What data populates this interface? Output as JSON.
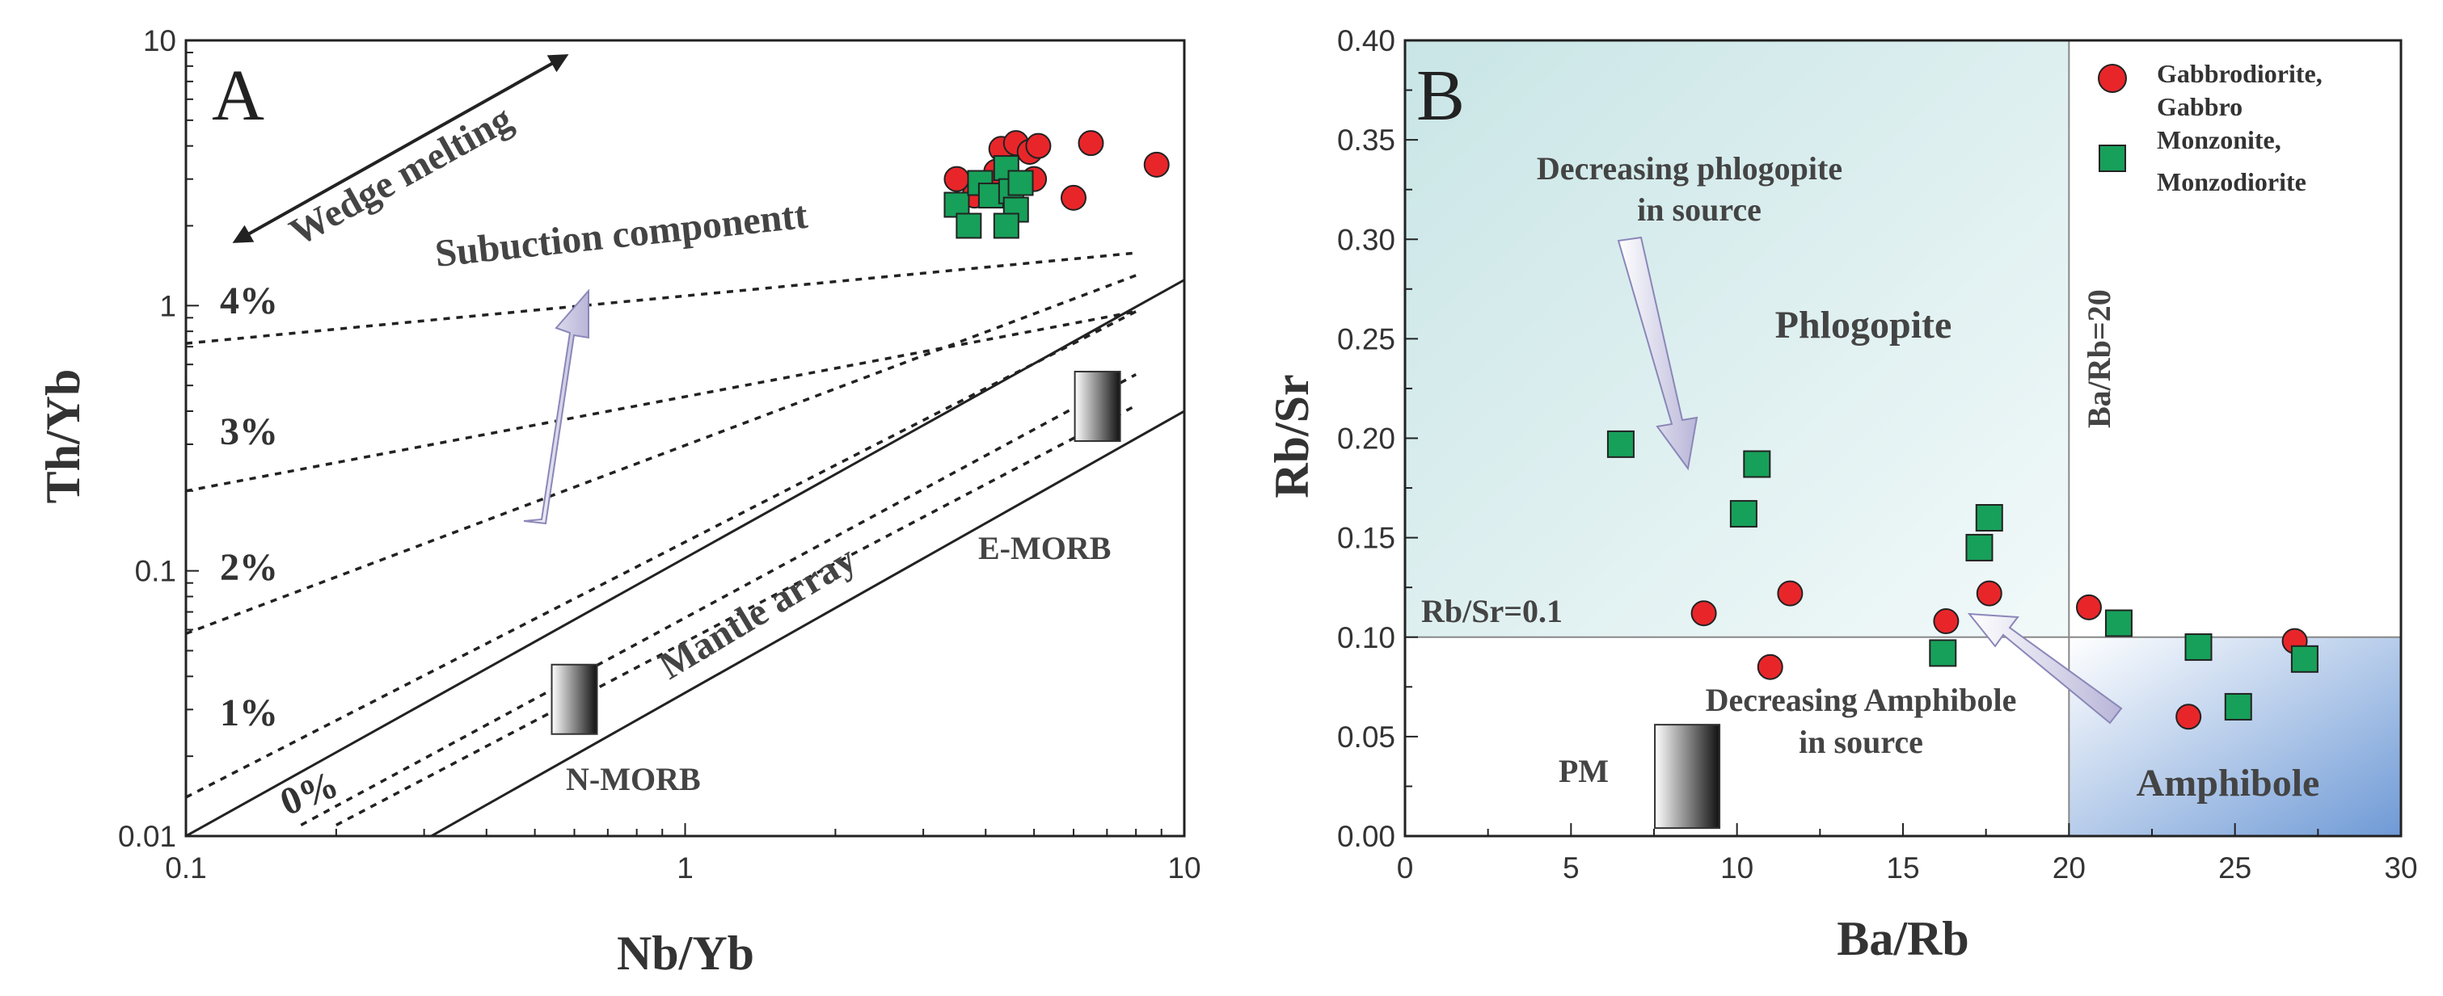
{
  "figure_colors": {
    "gabbro": "#e8262a",
    "monzonite": "#17a05a",
    "frame": "#222222",
    "phlogopite_fill_start": "#cfe7e7",
    "amphibole_fill_end": "#6f9ad6"
  },
  "chart_data": [
    {
      "panel": "A",
      "type": "scatter",
      "xscale": "log",
      "yscale": "log",
      "xlim": [
        0.1,
        10
      ],
      "ylim": [
        0.01,
        10
      ],
      "xticks": [
        0.1,
        1,
        10
      ],
      "yticks": [
        0.01,
        0.1,
        1,
        10
      ],
      "xtick_labels": [
        "0.1",
        "1",
        "10"
      ],
      "ytick_labels": [
        "0.01",
        "0.1",
        "1",
        "10"
      ],
      "xlabel": "Nb/Yb",
      "ylabel": "Th/Yb",
      "mantle_array": {
        "lower": [
          [
            0.31,
            0.01
          ],
          [
            10,
            0.4
          ]
        ],
        "upper": [
          [
            0.1,
            0.01
          ],
          [
            10,
            1.25
          ]
        ]
      },
      "melting_curves": [
        {
          "label": "0%",
          "points": [
            [
              0.2,
              0.011
            ],
            [
              8,
              0.42
            ]
          ]
        },
        {
          "label": "0%",
          "points": [
            [
              0.17,
              0.011
            ],
            [
              8,
              0.55
            ]
          ]
        },
        {
          "label": "1%",
          "points": [
            [
              0.1,
              0.014
            ],
            [
              8,
              0.95
            ]
          ]
        },
        {
          "label": "2%",
          "points": [
            [
              0.1,
              0.058
            ],
            [
              8,
              1.3
            ]
          ]
        },
        {
          "label": "3%",
          "points": [
            [
              0.1,
              0.2
            ],
            [
              8,
              0.95
            ]
          ]
        },
        {
          "label": "4%",
          "points": [
            [
              0.1,
              0.72
            ],
            [
              8,
              1.58
            ]
          ]
        }
      ],
      "reference_points": [
        {
          "label": "N-MORB",
          "x": 0.6,
          "y": 0.033
        },
        {
          "label": "E-MORB",
          "x": 6.7,
          "y": 0.42
        }
      ],
      "annotations": {
        "wedge_melting": "Wedge melting",
        "subduction": "Subuction componentt",
        "mantle_array": "Mantle array",
        "percent_labels": [
          "4%",
          "3%",
          "2%",
          "1%",
          "0%"
        ]
      },
      "series": [
        {
          "name": "Gabbrodiorite, Gabbro",
          "marker": "circle",
          "color": "#e8262a",
          "points": [
            [
              4.3,
              3.9
            ],
            [
              4.6,
              4.1
            ],
            [
              4.9,
              3.8
            ],
            [
              5.1,
              4.0
            ],
            [
              4.2,
              3.2
            ],
            [
              3.5,
              3.0
            ],
            [
              5.0,
              3.0
            ],
            [
              3.8,
              2.6
            ],
            [
              6.0,
              2.55
            ],
            [
              6.5,
              4.1
            ],
            [
              8.8,
              3.4
            ]
          ]
        },
        {
          "name": "Monzonite, Monzodiorite",
          "marker": "square",
          "color": "#17a05a",
          "points": [
            [
              3.5,
              2.4
            ],
            [
              3.7,
              2.0
            ],
            [
              3.9,
              2.9
            ],
            [
              4.1,
              2.6
            ],
            [
              4.4,
              3.3
            ],
            [
              4.5,
              2.7
            ],
            [
              4.6,
              2.3
            ],
            [
              4.4,
              2.0
            ],
            [
              4.7,
              2.9
            ]
          ]
        }
      ]
    },
    {
      "panel": "B",
      "type": "scatter",
      "xlim": [
        0,
        30
      ],
      "ylim": [
        0,
        0.4
      ],
      "xticks": [
        0,
        5,
        10,
        15,
        20,
        25,
        30
      ],
      "yticks": [
        0.0,
        0.05,
        0.1,
        0.15,
        0.2,
        0.25,
        0.3,
        0.35,
        0.4
      ],
      "xtick_labels": [
        "0",
        "5",
        "10",
        "15",
        "20",
        "25",
        "30"
      ],
      "ytick_labels": [
        "0.00",
        "0.05",
        "0.10",
        "0.15",
        "0.20",
        "0.25",
        "0.30",
        "0.35",
        "0.40"
      ],
      "xlabel": "Ba/Rb",
      "ylabel": "Rb/Sr",
      "reference_lines": {
        "rb_sr": 0.1,
        "ba_rb": 20
      },
      "reference_points": [
        {
          "label": "PM",
          "x": 8.5,
          "y": 0.03
        }
      ],
      "fields": {
        "phlogopite": "Phlogopite",
        "amphibole": "Amphibole"
      },
      "annotations": {
        "rb_sr_line": "Rb/Sr=0.1",
        "ba_rb_line": "Ba/Rb=20",
        "phlogopite_arrow": [
          "Decreasing phlogopite",
          "in source"
        ],
        "amphibole_arrow": [
          "Decreasing Amphibole",
          "in source"
        ]
      },
      "legend": {
        "position": "top-right",
        "entries": [
          {
            "lines": [
              "Gabbrodiorite,",
              "Gabbro"
            ],
            "marker": "circle",
            "color": "#e8262a"
          },
          {
            "lines": [
              "Monzonite,",
              "Monzodiorite"
            ],
            "marker": "square",
            "color": "#17a05a"
          }
        ]
      },
      "series": [
        {
          "name": "Gabbrodiorite, Gabbro",
          "marker": "circle",
          "color": "#e8262a",
          "points": [
            [
              9.0,
              0.112
            ],
            [
              11.0,
              0.085
            ],
            [
              11.6,
              0.122
            ],
            [
              16.3,
              0.108
            ],
            [
              17.6,
              0.122
            ],
            [
              20.6,
              0.115
            ],
            [
              23.6,
              0.06
            ],
            [
              26.8,
              0.098
            ]
          ]
        },
        {
          "name": "Monzonite, Monzodiorite",
          "marker": "square",
          "color": "#17a05a",
          "points": [
            [
              6.5,
              0.197
            ],
            [
              10.2,
              0.162
            ],
            [
              10.6,
              0.187
            ],
            [
              16.2,
              0.092
            ],
            [
              17.3,
              0.145
            ],
            [
              17.6,
              0.16
            ],
            [
              21.5,
              0.107
            ],
            [
              23.9,
              0.095
            ],
            [
              25.1,
              0.065
            ],
            [
              27.1,
              0.089
            ]
          ]
        }
      ]
    }
  ]
}
